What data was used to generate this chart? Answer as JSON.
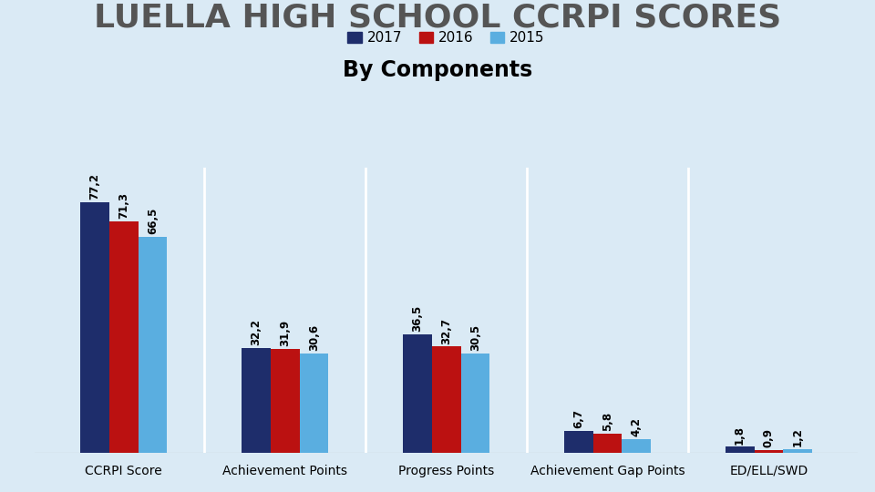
{
  "title": "LUELLA HIGH SCHOOL CCRPI SCORES",
  "subtitle": "By Components",
  "categories": [
    "CCRPI Score",
    "Achievement Points",
    "Progress Points",
    "Achievement Gap Points",
    "ED/ELL/SWD"
  ],
  "years": [
    "2017",
    "2016",
    "2015"
  ],
  "values": {
    "2017": [
      77.2,
      32.2,
      36.5,
      6.7,
      1.8
    ],
    "2016": [
      71.3,
      31.9,
      32.7,
      5.8,
      0.9
    ],
    "2015": [
      66.5,
      30.6,
      30.5,
      4.2,
      1.2
    ]
  },
  "colors": {
    "2017": "#1e2d6b",
    "2016": "#bb1111",
    "2015": "#5aaee0"
  },
  "background_color": "#daeaf5",
  "bar_width": 0.18,
  "ylim": [
    0,
    88
  ],
  "legend_fontsize": 11,
  "title_fontsize": 26,
  "title_color": "#555555",
  "subtitle_fontsize": 17,
  "label_fontsize": 8.5,
  "xtick_fontsize": 10
}
